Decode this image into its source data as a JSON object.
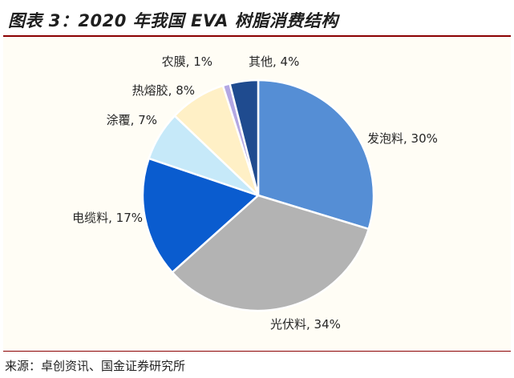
{
  "title": "图表 3：2020 年我国 EVA 树脂消费结构",
  "source": "来源：卓创资讯、国金证券研究所",
  "chart_data": {
    "type": "pie",
    "title": "",
    "slices": [
      {
        "name": "发泡料",
        "value": 30,
        "label": "发泡料, 30%",
        "color": "#558ed5"
      },
      {
        "name": "光伏料",
        "value": 34,
        "label": "光伏料, 34%",
        "color": "#b3b3b3"
      },
      {
        "name": "电缆料",
        "value": 17,
        "label": "电缆料, 17%",
        "color": "#0a5ccf"
      },
      {
        "name": "涂覆",
        "value": 7,
        "label": "涂覆, 7%",
        "color": "#c6e9f9"
      },
      {
        "name": "热熔胶",
        "value": 8,
        "label": "热熔胶, 8%",
        "color": "#fff0c6"
      },
      {
        "name": "农膜",
        "value": 1,
        "label": "农膜, 1%",
        "color": "#b3a7e3"
      },
      {
        "name": "其他",
        "value": 4,
        "label": "其他, 4%",
        "color": "#1f4b8f"
      }
    ]
  }
}
